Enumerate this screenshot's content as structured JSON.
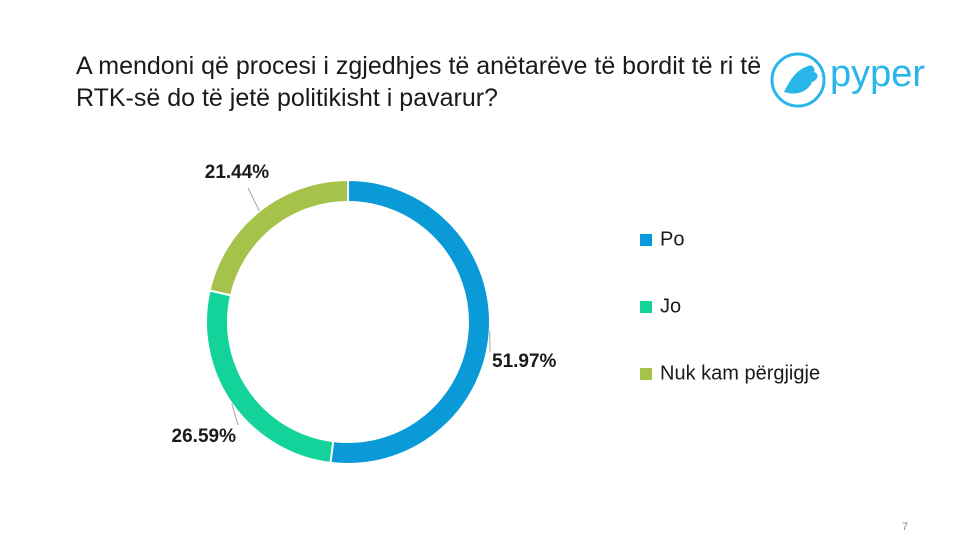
{
  "chart_data": {
    "type": "pie",
    "donut": true,
    "title": "A mendoni që procesi i zgjedhjes të anëtarëve të bordit të ri të RTK-së do të jetë politikisht i pavarur?",
    "categories": [
      "Po",
      "Jo",
      "Nuk kam përgjigje"
    ],
    "values": [
      51.97,
      26.59,
      21.44
    ],
    "value_labels": [
      "51.97%",
      "26.59%",
      "21.44%"
    ],
    "colors": [
      "#0a9ad8",
      "#14d39a",
      "#a5c24a"
    ],
    "legend": "right"
  },
  "logo": "pyper",
  "page_number": "7"
}
